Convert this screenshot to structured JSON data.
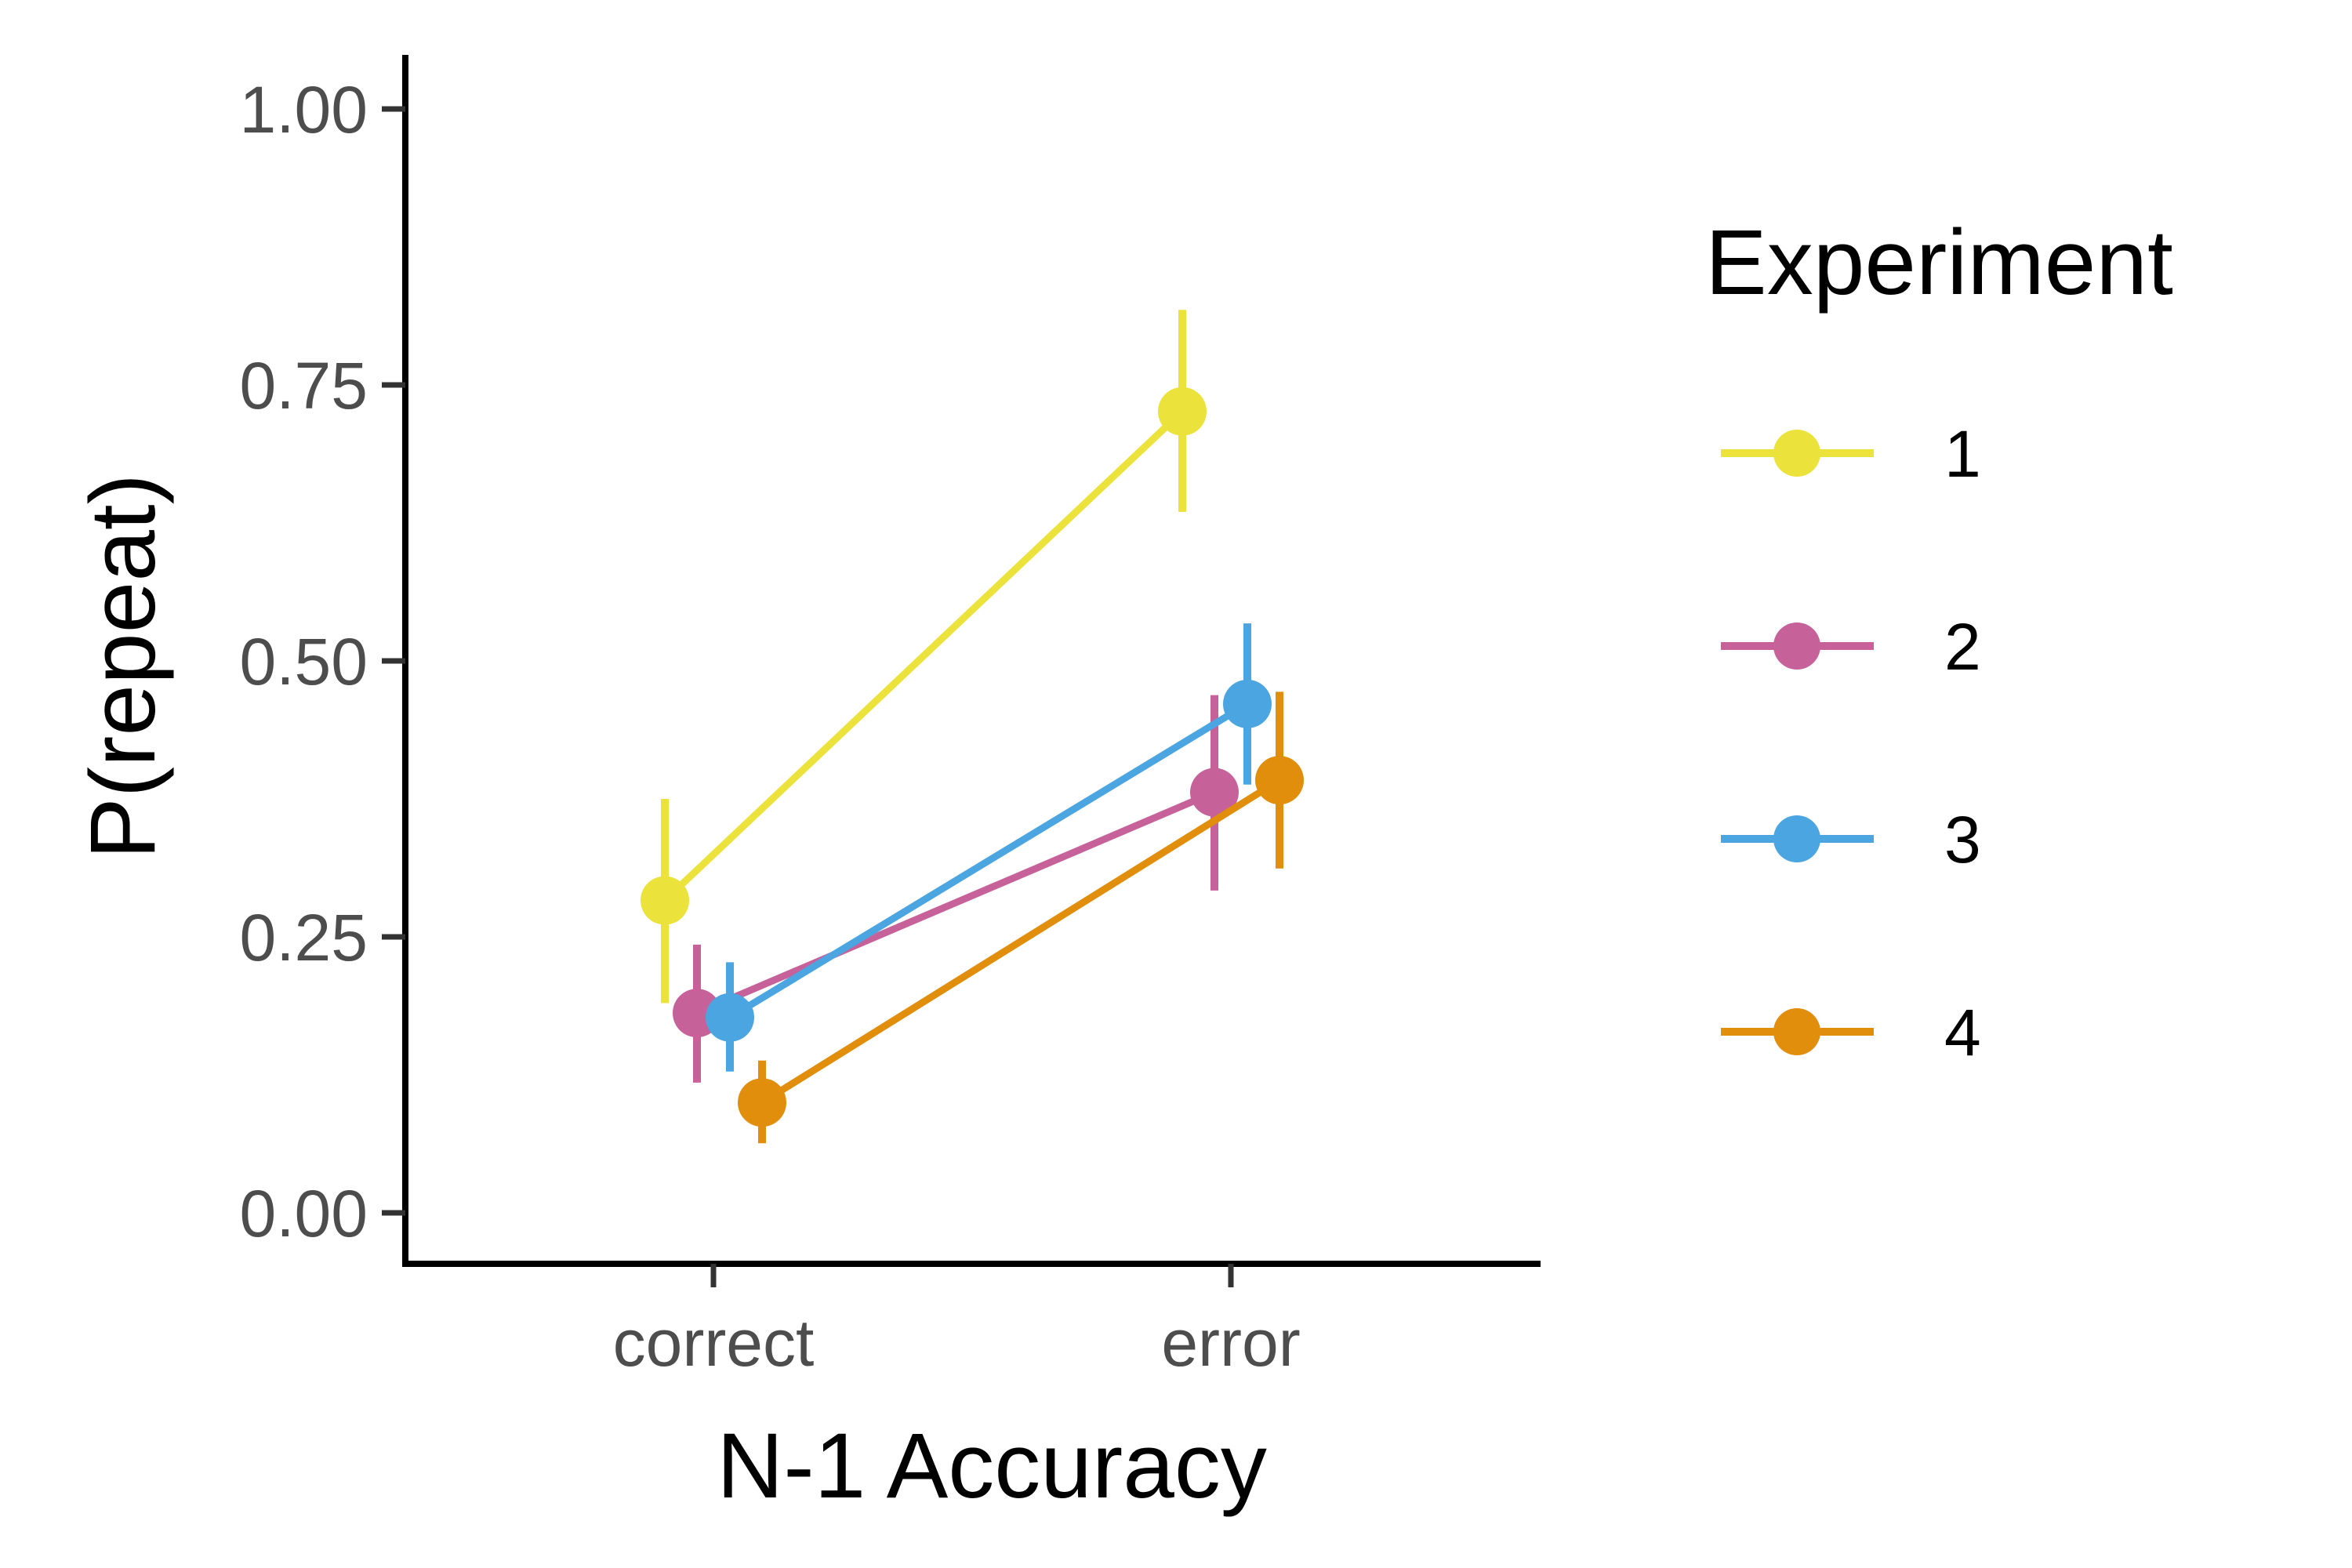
{
  "chart_data": {
    "type": "line",
    "title": "",
    "xlabel": "N-1 Accuracy",
    "ylabel": "P(repeat)",
    "categories": [
      "correct",
      "error"
    ],
    "ylim": [
      -0.045,
      1.05
    ],
    "yticks": [
      0.0,
      0.25,
      0.5,
      0.75,
      1.0
    ],
    "ytick_labels": [
      "0.00",
      "0.25",
      "0.50",
      "0.75",
      "1.00"
    ],
    "grid": false,
    "legend": {
      "title": "Experiment",
      "placement": "right"
    },
    "series": [
      {
        "name": "1",
        "color": "#EBE23C",
        "values": [
          0.283,
          0.726
        ],
        "lower": [
          0.19,
          0.635
        ],
        "upper": [
          0.375,
          0.818
        ]
      },
      {
        "name": "2",
        "color": "#C66199",
        "values": [
          0.181,
          0.381
        ],
        "lower": [
          0.118,
          0.292
        ],
        "upper": [
          0.243,
          0.469
        ]
      },
      {
        "name": "3",
        "color": "#4BA5E0",
        "values": [
          0.177,
          0.461
        ],
        "lower": [
          0.128,
          0.388
        ],
        "upper": [
          0.227,
          0.534
        ]
      },
      {
        "name": "4",
        "color": "#E08E0B",
        "values": [
          0.1,
          0.392
        ],
        "lower": [
          0.063,
          0.312
        ],
        "upper": [
          0.138,
          0.472
        ]
      }
    ]
  }
}
